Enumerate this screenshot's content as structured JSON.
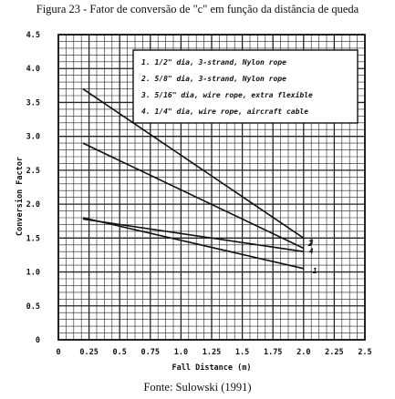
{
  "figure": {
    "caption": "Figura 23 - Fator de conversão de \"c\" em função da distância de queda",
    "source": "Fonte: Sulowski (1991)"
  },
  "chart_data": {
    "type": "line",
    "xlabel": "Fall Distance (m)",
    "ylabel": "Conversion Factor",
    "xlim": [
      0,
      2.5
    ],
    "ylim": [
      0,
      4.5
    ],
    "x_ticks": [
      {
        "value": 0,
        "label": "0"
      },
      {
        "value": 0.25,
        "label": "0.25"
      },
      {
        "value": 0.5,
        "label": "0.5"
      },
      {
        "value": 0.75,
        "label": "0.75"
      },
      {
        "value": 1.0,
        "label": "1.0"
      },
      {
        "value": 1.25,
        "label": "1.25"
      },
      {
        "value": 1.5,
        "label": "1.5"
      },
      {
        "value": 1.75,
        "label": "1.75"
      },
      {
        "value": 2.0,
        "label": "2.0"
      },
      {
        "value": 2.25,
        "label": "2.25"
      },
      {
        "value": 2.5,
        "label": "2.5"
      }
    ],
    "y_ticks": [
      {
        "value": 0,
        "label": "0"
      },
      {
        "value": 0.5,
        "label": "0.5"
      },
      {
        "value": 1.0,
        "label": "1.0"
      },
      {
        "value": 1.5,
        "label": "1.5"
      },
      {
        "value": 2.0,
        "label": "2.0"
      },
      {
        "value": 2.5,
        "label": "2.5"
      },
      {
        "value": 3.0,
        "label": "3.0"
      },
      {
        "value": 3.5,
        "label": "3.5"
      },
      {
        "value": 4.0,
        "label": "4.0"
      },
      {
        "value": 4.5,
        "label": "4.5"
      }
    ],
    "grid": true,
    "legend_position": "top-right",
    "legend": [
      "1.  1/2\" dia, 3-strand, Nylon rope",
      "2.  5/8\" dia, 3-strand, Nylon rope",
      "3.  5/16\" dia, wire rope, extra flexible",
      "4.  1/4\" dia, wire rope, aircraft cable"
    ],
    "series": [
      {
        "name": "1",
        "x": [
          0.2,
          2.0
        ],
        "y": [
          1.8,
          1.05
        ]
      },
      {
        "name": "2",
        "x": [
          0.2,
          2.0
        ],
        "y": [
          1.78,
          1.3
        ]
      },
      {
        "name": "3",
        "x": [
          0.2,
          2.0
        ],
        "y": [
          3.7,
          1.5
        ]
      },
      {
        "name": "4",
        "x": [
          0.2,
          2.0
        ],
        "y": [
          2.9,
          1.35
        ]
      }
    ]
  }
}
